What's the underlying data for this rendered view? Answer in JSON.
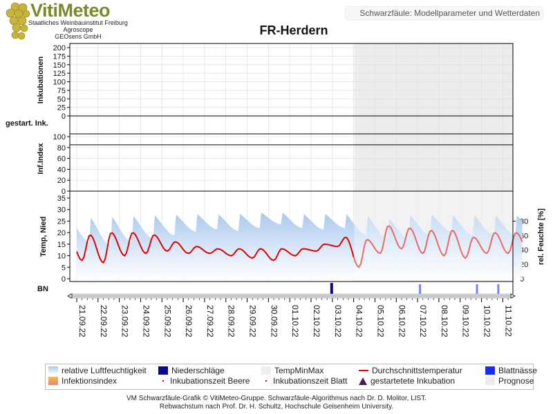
{
  "logo": {
    "title": "VitiMeteo",
    "subtitle_lines": [
      "Staatliches Weinbauinstitut Freiburg",
      "Agroscope",
      "GEOsens GmbH"
    ]
  },
  "header": {
    "label": "Schwarzfäule: Modellparameter und Wetterdaten"
  },
  "colors": {
    "humidity": "#a9c9ee",
    "precip": "#0a0a8c",
    "temp_line": "#e00000",
    "temp_forecast": "#ee6666",
    "leaf_wetness": "#1a2bff",
    "forecast_bg": "#ececec",
    "grid": "#e0e0e0"
  },
  "chart_data": {
    "type": "line",
    "title": "FR-Herdern",
    "panels": [
      {
        "name": "Inkubationen",
        "ylabel": "Inkubationen",
        "ylim": [
          0,
          200
        ],
        "ticks": [
          0,
          25,
          50,
          75,
          100,
          125,
          150,
          175,
          200
        ]
      },
      {
        "name": "gestart. Ink.",
        "ylabel": "gestart. Ink."
      },
      {
        "name": "Inf.Index",
        "ylabel": "Inf.Index",
        "ylim": [
          0,
          100
        ],
        "ticks": [
          0,
          20,
          40,
          60,
          80,
          100
        ]
      },
      {
        "name": "Temp, Nied",
        "ylabel": "Temp, Nied",
        "ylim": [
          0,
          35
        ],
        "ticks": [
          0,
          5,
          10,
          15,
          20,
          25,
          30,
          35
        ],
        "ylabel_right": "rel. Feuchte [%]",
        "ylim_right": [
          0,
          100
        ],
        "ticks_right": [
          0,
          20,
          40,
          60,
          80
        ]
      },
      {
        "name": "BN",
        "ylabel": "BN"
      }
    ],
    "x_dates": [
      "21.09.22",
      "22.09.22",
      "23.09.22",
      "24.09.22",
      "25.09.22",
      "26.09.22",
      "27.09.22",
      "28.09.22",
      "29.09.22",
      "30.09.22",
      "01.10.22",
      "02.10.22",
      "03.10.22",
      "04.10.22",
      "05.10.22",
      "06.10.22",
      "07.10.22",
      "08.10.22",
      "09.10.22",
      "10.10.22",
      "11.10.22"
    ],
    "forecast_from": "04.10.22",
    "temperature_daily": {
      "21.09.22": [
        19,
        8
      ],
      "22.09.22": [
        20,
        7
      ],
      "23.09.22": [
        20,
        10
      ],
      "24.09.22": [
        19,
        11
      ],
      "25.09.22": [
        16,
        12
      ],
      "26.09.22": [
        14,
        11
      ],
      "27.09.22": [
        13,
        11
      ],
      "28.09.22": [
        13,
        10
      ],
      "29.09.22": [
        13,
        9
      ],
      "30.09.22": [
        13,
        8
      ],
      "01.10.22": [
        13,
        10
      ],
      "02.10.22": [
        15,
        12
      ],
      "03.10.22": [
        18,
        14
      ],
      "04.10.22": [
        17,
        5
      ],
      "05.10.22": [
        23,
        11
      ],
      "06.10.22": [
        22,
        13
      ],
      "07.10.22": [
        21,
        11
      ],
      "08.10.22": [
        21,
        10
      ],
      "09.10.22": [
        18,
        9
      ],
      "10.10.22": [
        20,
        11
      ],
      "11.10.22": [
        20,
        11
      ]
    },
    "humidity_daily": {
      "21.09.22": [
        95,
        50
      ],
      "22.09.22": [
        95,
        45
      ],
      "23.09.22": [
        95,
        50
      ],
      "24.09.22": [
        95,
        55
      ],
      "25.09.22": [
        95,
        60
      ],
      "26.09.22": [
        95,
        65
      ],
      "27.09.22": [
        95,
        68
      ],
      "28.09.22": [
        95,
        66
      ],
      "29.09.22": [
        96,
        70
      ],
      "30.09.22": [
        97,
        75
      ],
      "01.10.22": [
        95,
        70
      ],
      "02.10.22": [
        95,
        68
      ],
      "03.10.22": [
        97,
        70
      ],
      "04.10.22": [
        95,
        60
      ],
      "05.10.22": [
        90,
        55
      ],
      "06.10.22": [
        95,
        55
      ],
      "07.10.22": [
        95,
        60
      ],
      "08.10.22": [
        95,
        65
      ],
      "09.10.22": [
        95,
        60
      ],
      "10.10.22": [
        95,
        60
      ],
      "11.10.22": [
        95,
        60
      ]
    },
    "precipitation": [
      {
        "date": "03.10.22",
        "value": 3
      }
    ],
    "leaf_wetness": [
      "07.10.22",
      "10.10.22",
      "11.10.22"
    ],
    "legend": [
      {
        "label": "relative Luftfeuchtigkeit",
        "marker": "humidity"
      },
      {
        "label": "Niederschläge",
        "marker": "precip"
      },
      {
        "label": "TempMinMax",
        "marker": "tempminmax"
      },
      {
        "label": "Durchschnittstemperatur",
        "marker": "line"
      },
      {
        "label": "Blattnässe",
        "marker": "leaf"
      },
      {
        "label": "Infektionsindex",
        "marker": "infindex"
      },
      {
        "label": "Inkubationszeit Beere",
        "marker": "dot"
      },
      {
        "label": "Inkubationszeit Blatt",
        "marker": "dot"
      },
      {
        "label": "gestartetete Inkubation",
        "marker": "triangle"
      },
      {
        "label": "Prognose",
        "marker": "forecast"
      }
    ]
  },
  "footer": {
    "line1": "VM Schwarzfäule-Grafik © VitiMeteo-Gruppe. Schwarzfäule-Algorithmus nach Dr. D. Molitor, LIST.",
    "line2": "Rebwachstum nach Prof. Dr. H. Schultz, Hochschule Geisenheim University."
  }
}
